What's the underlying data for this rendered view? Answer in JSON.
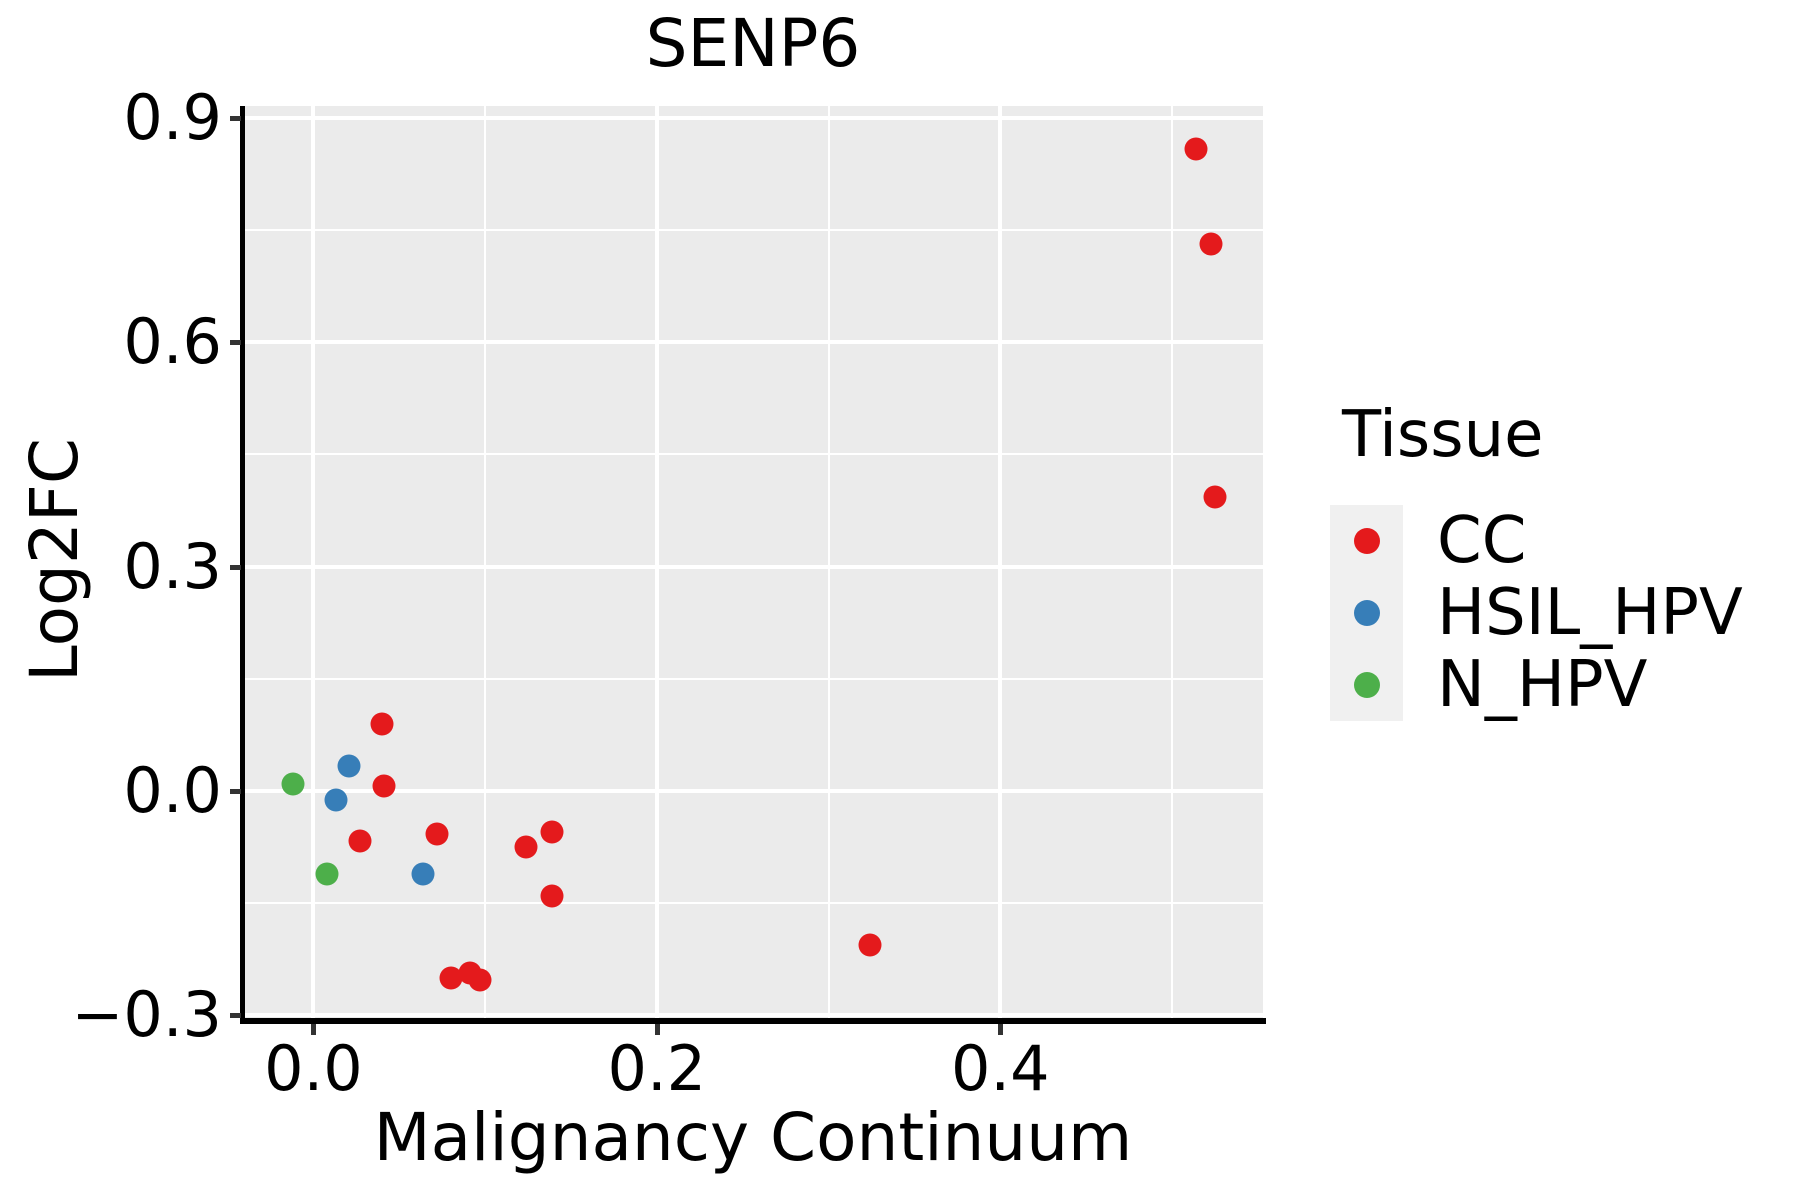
{
  "title": "SENP6",
  "axes": {
    "x": {
      "label": "Malignancy Continuum",
      "ticks": [
        {
          "value": 0.0,
          "label": "0.0"
        },
        {
          "value": 0.2,
          "label": "0.2"
        },
        {
          "value": 0.4,
          "label": "0.4"
        }
      ],
      "minor_gridlines": [
        0.1,
        0.3,
        0.5
      ]
    },
    "y": {
      "label": "Log2FC",
      "ticks": [
        {
          "value": 0.9,
          "label": "0.9"
        },
        {
          "value": 0.6,
          "label": "0.6"
        },
        {
          "value": 0.3,
          "label": "0.3"
        },
        {
          "value": 0.0,
          "label": "0.0"
        },
        {
          "value": -0.3,
          "label": "−0.3"
        }
      ],
      "minor_gridlines": [
        0.75,
        0.45,
        0.15,
        -0.15
      ]
    }
  },
  "legend": {
    "title": "Tissue",
    "items": [
      {
        "label": "CC",
        "color": "#E41A1C"
      },
      {
        "label": "HSIL_HPV",
        "color": "#377EB8"
      },
      {
        "label": "N_HPV",
        "color": "#4DAF4A"
      }
    ]
  },
  "colors": {
    "panel_background": "#EBEBEB",
    "gridline": "#FFFFFF",
    "spine": "#000000",
    "tick": "#333333",
    "legend_key_background": "#F0F0F0"
  },
  "chart_data": {
    "type": "scatter",
    "title": "SENP6",
    "xlabel": "Malignancy Continuum",
    "ylabel": "Log2FC",
    "xlim": [
      -0.041,
      0.553
    ],
    "ylim": [
      -0.305,
      0.916
    ],
    "grid": true,
    "legend_title": "Tissue",
    "legend_position": "right",
    "series": [
      {
        "name": "CC",
        "color": "#E41A1C",
        "points": [
          [
            0.514,
            0.858
          ],
          [
            0.523,
            0.731
          ],
          [
            0.525,
            0.393
          ],
          [
            0.04,
            0.09
          ],
          [
            0.041,
            0.007
          ],
          [
            0.027,
            -0.067
          ],
          [
            0.072,
            -0.058
          ],
          [
            0.124,
            -0.075
          ],
          [
            0.139,
            -0.055
          ],
          [
            0.139,
            -0.14
          ],
          [
            0.324,
            -0.206
          ],
          [
            0.08,
            -0.25
          ],
          [
            0.091,
            -0.243
          ],
          [
            0.097,
            -0.253
          ]
        ]
      },
      {
        "name": "HSIL_HPV",
        "color": "#377EB8",
        "points": [
          [
            0.021,
            0.033
          ],
          [
            0.013,
            -0.012
          ],
          [
            0.064,
            -0.111
          ]
        ]
      },
      {
        "name": "N_HPV",
        "color": "#4DAF4A",
        "points": [
          [
            -0.012,
            0.009
          ],
          [
            0.008,
            -0.111
          ]
        ]
      }
    ]
  }
}
